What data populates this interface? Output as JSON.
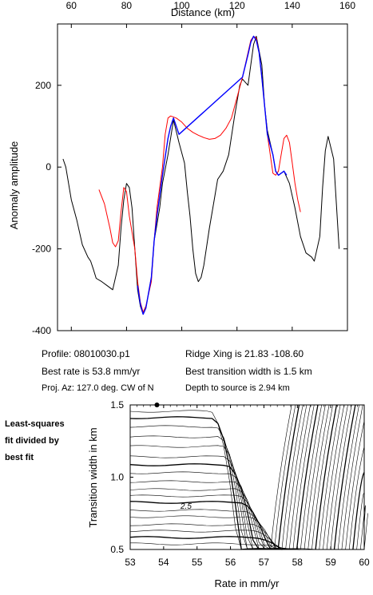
{
  "chart_data": [
    {
      "type": "line",
      "xlabel": "Distance (km)",
      "ylabel": "Anomaly amplitude",
      "xlim": [
        55,
        160
      ],
      "ylim": [
        -400,
        350
      ],
      "x_ticks": [
        60,
        80,
        100,
        120,
        140,
        160
      ],
      "y_ticks": [
        200,
        0,
        -200,
        -400
      ],
      "series": [
        {
          "color": "#000000",
          "points": [
            [
              57,
              20
            ],
            [
              58,
              0
            ],
            [
              60,
              -80
            ],
            [
              62,
              -130
            ],
            [
              64,
              -190
            ],
            [
              66,
              -220
            ],
            [
              67,
              -230
            ],
            [
              68,
              -250
            ],
            [
              69,
              -272
            ],
            [
              71,
              -280
            ],
            [
              73,
              -290
            ],
            [
              75,
              -300
            ],
            [
              77,
              -240
            ],
            [
              78,
              -150
            ],
            [
              79,
              -80
            ],
            [
              80,
              -40
            ],
            [
              81,
              -50
            ],
            [
              82,
              -100
            ],
            [
              83,
              -200
            ],
            [
              84,
              -300
            ],
            [
              85,
              -340
            ],
            [
              86,
              -360
            ],
            [
              87,
              -345
            ],
            [
              89,
              -270
            ],
            [
              90,
              -180
            ],
            [
              91,
              -140
            ],
            [
              92,
              -100
            ],
            [
              93,
              -40
            ],
            [
              95,
              30
            ],
            [
              97,
              115
            ],
            [
              99,
              60
            ],
            [
              101,
              10
            ],
            [
              102,
              -60
            ],
            [
              103,
              -120
            ],
            [
              104,
              -200
            ],
            [
              105,
              -260
            ],
            [
              106,
              -280
            ],
            [
              107,
              -270
            ],
            [
              108,
              -240
            ],
            [
              110,
              -150
            ],
            [
              112,
              -70
            ],
            [
              113,
              -30
            ],
            [
              115,
              -10
            ],
            [
              117,
              30
            ],
            [
              119,
              120
            ],
            [
              121,
              200
            ],
            [
              122,
              215
            ],
            [
              124,
              200
            ],
            [
              126,
              300
            ],
            [
              127,
              320
            ],
            [
              129,
              250
            ],
            [
              130,
              150
            ],
            [
              131,
              90
            ],
            [
              133,
              30
            ],
            [
              134,
              -10
            ],
            [
              135,
              -20
            ],
            [
              137,
              -10
            ],
            [
              139,
              -40
            ],
            [
              141,
              -100
            ],
            [
              143,
              -170
            ],
            [
              145,
              -210
            ],
            [
              147,
              -220
            ],
            [
              148,
              -230
            ],
            [
              150,
              -170
            ],
            [
              151,
              -50
            ],
            [
              152,
              40
            ],
            [
              153,
              75
            ],
            [
              155,
              20
            ],
            [
              157,
              -200
            ]
          ]
        },
        {
          "color": "#ff0000",
          "points": [
            [
              70,
              -55
            ],
            [
              72,
              -90
            ],
            [
              74,
              -150
            ],
            [
              75,
              -185
            ],
            [
              76,
              -195
            ],
            [
              77,
              -180
            ],
            [
              78,
              -110
            ],
            [
              79,
              -50
            ],
            [
              80,
              -60
            ],
            [
              81,
              -120
            ],
            [
              83,
              -200
            ],
            [
              84,
              -280
            ],
            [
              85,
              -330
            ],
            [
              86,
              -355
            ],
            [
              87,
              -340
            ],
            [
              89,
              -280
            ],
            [
              90,
              -180
            ],
            [
              91,
              -100
            ],
            [
              93,
              0
            ],
            [
              94,
              80
            ],
            [
              95,
              120
            ],
            [
              96,
              125
            ],
            [
              98,
              120
            ],
            [
              100,
              110
            ],
            [
              102,
              95
            ],
            [
              104,
              85
            ],
            [
              106,
              78
            ],
            [
              108,
              72
            ],
            [
              110,
              68
            ],
            [
              112,
              70
            ],
            [
              114,
              78
            ],
            [
              116,
              95
            ],
            [
              118,
              120
            ],
            [
              120,
              170
            ],
            [
              122,
              220
            ],
            [
              124,
              280
            ],
            [
              125,
              310
            ],
            [
              126,
              320
            ],
            [
              127,
              315
            ],
            [
              128,
              280
            ],
            [
              129,
              220
            ],
            [
              130,
              150
            ],
            [
              131,
              80
            ],
            [
              133,
              -15
            ],
            [
              134,
              -20
            ],
            [
              135,
              -10
            ],
            [
              136,
              30
            ],
            [
              137,
              70
            ],
            [
              138,
              78
            ],
            [
              139,
              60
            ],
            [
              140,
              10
            ],
            [
              141,
              -40
            ],
            [
              142,
              -80
            ],
            [
              143,
              -110
            ]
          ]
        },
        {
          "color": "#0000ff",
          "points": [
            [
              84,
              -290
            ],
            [
              85,
              -335
            ],
            [
              86,
              -360
            ],
            [
              87,
              -345
            ],
            [
              89,
              -270
            ],
            [
              90,
              -180
            ],
            [
              91,
              -120
            ],
            [
              93,
              -20
            ],
            [
              95,
              70
            ],
            [
              96,
              100
            ],
            [
              97,
              120
            ],
            [
              99,
              80
            ],
            [
              122,
              220
            ],
            [
              124,
              275
            ],
            [
              125,
              305
            ],
            [
              126,
              320
            ],
            [
              127,
              310
            ],
            [
              128,
              280
            ],
            [
              129,
              220
            ],
            [
              130,
              150
            ],
            [
              131,
              80
            ],
            [
              133,
              30
            ],
            [
              134,
              -10
            ],
            [
              135,
              -20
            ],
            [
              137,
              -10
            ],
            [
              138,
              -20
            ]
          ]
        }
      ]
    },
    {
      "type": "contour",
      "xlabel": "Rate in mm/yr",
      "ylabel": "Transition width in km",
      "xlim": [
        53,
        60
      ],
      "ylim": [
        0.5,
        1.5
      ],
      "x_ticks": [
        53,
        54,
        55,
        56,
        57,
        58,
        59,
        60
      ],
      "y_ticks": [
        0.5,
        1.0,
        1.5
      ],
      "contour_label": "2.5",
      "best_fit_point": [
        53.8,
        1.5
      ]
    }
  ],
  "info": {
    "profile": "Profile: 08010030.p1",
    "best_rate": "Best rate is 53.8 mm/yr",
    "proj_az": "Proj. Az: 127.0 deg. CW of N",
    "ridge_xing": "Ridge Xing is 21.83 -108.60",
    "best_transition": "Best transition width is 1.5 km",
    "depth": "Depth to source is   2.94 km"
  },
  "side_note": [
    "Least-squares",
    "fit divided by",
    "best fit"
  ]
}
